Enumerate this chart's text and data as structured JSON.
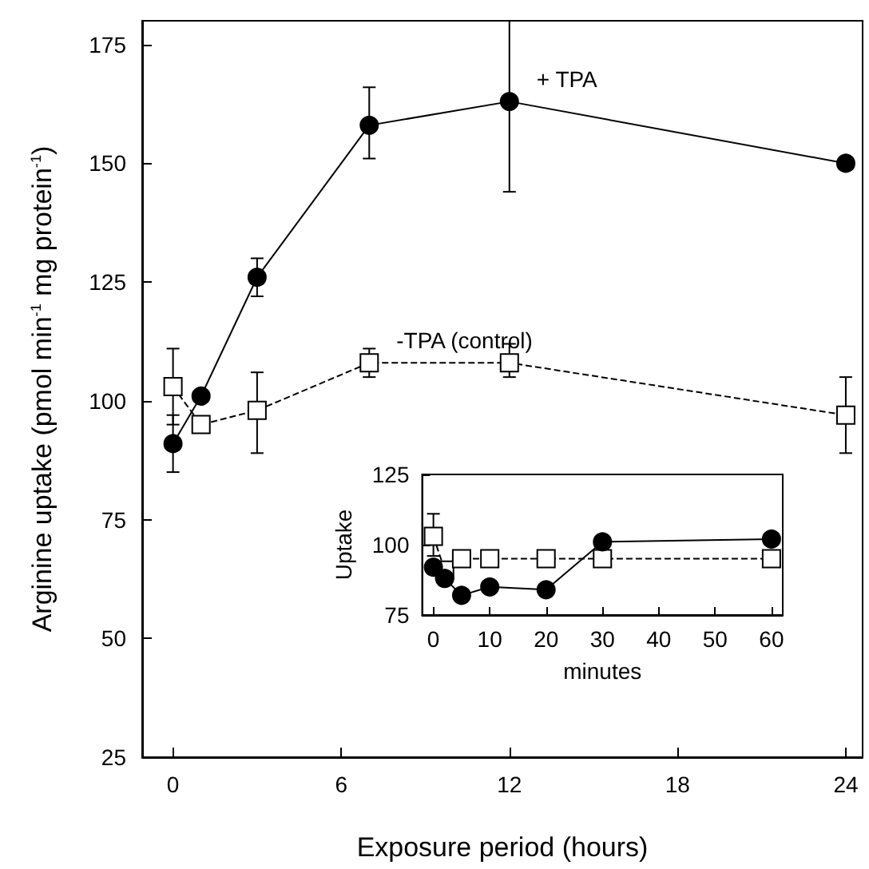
{
  "chart_data": [
    {
      "type": "line",
      "xlabel": "Exposure period (hours)",
      "ylabel": "Arginine uptake (pmol min$^{-1}$ mg protein$^{-1}$)",
      "x": [
        0,
        1,
        3,
        7,
        12,
        24
      ],
      "xlim": [
        -1.1,
        24.6
      ],
      "xticks": [
        0,
        6,
        12,
        18,
        24
      ],
      "ylim": [
        25,
        180
      ],
      "yticks": [
        25,
        50,
        75,
        100,
        125,
        150,
        175
      ],
      "grid": false,
      "series": [
        {
          "name": "+ TPA",
          "color": "#000000",
          "marker": "circle",
          "line_style": "solid",
          "values": [
            91,
            101,
            126,
            158,
            163,
            150
          ],
          "errors": [
            [
              85,
              97
            ],
            null,
            [
              122,
              130
            ],
            [
              151,
              166
            ],
            [
              144,
              180
            ],
            null
          ]
        },
        {
          "name": "-TPA (control)",
          "color": "#000000",
          "marker": "square",
          "line_style": "dashed",
          "values": [
            103,
            95,
            98,
            108,
            108,
            97
          ],
          "errors": [
            [
              95,
              111
            ],
            null,
            [
              89,
              106
            ],
            [
              105,
              111
            ],
            [
              105,
              112
            ],
            [
              89,
              105
            ]
          ]
        }
      ]
    },
    {
      "type": "line",
      "xlabel": "minutes",
      "ylabel": "Uptake",
      "x": [
        0,
        2,
        5,
        10,
        20,
        30,
        60
      ],
      "xlim": [
        -2,
        62
      ],
      "xticks": [
        0,
        10,
        20,
        30,
        40,
        50,
        60
      ],
      "ylim": [
        75,
        125
      ],
      "yticks": [
        75,
        100,
        125
      ],
      "grid": false,
      "series": [
        {
          "color": "#000000",
          "marker": "circle",
          "line_style": "solid",
          "values": [
            92,
            88,
            82,
            85,
            84,
            101,
            102
          ]
        },
        {
          "color": "#000000",
          "marker": "square",
          "line_style": "dashed",
          "values": [
            103,
            91,
            95,
            95,
            95,
            95,
            95
          ],
          "errors": [
            [
              96,
              111
            ],
            null,
            null,
            null,
            null,
            null,
            null
          ]
        }
      ]
    }
  ]
}
